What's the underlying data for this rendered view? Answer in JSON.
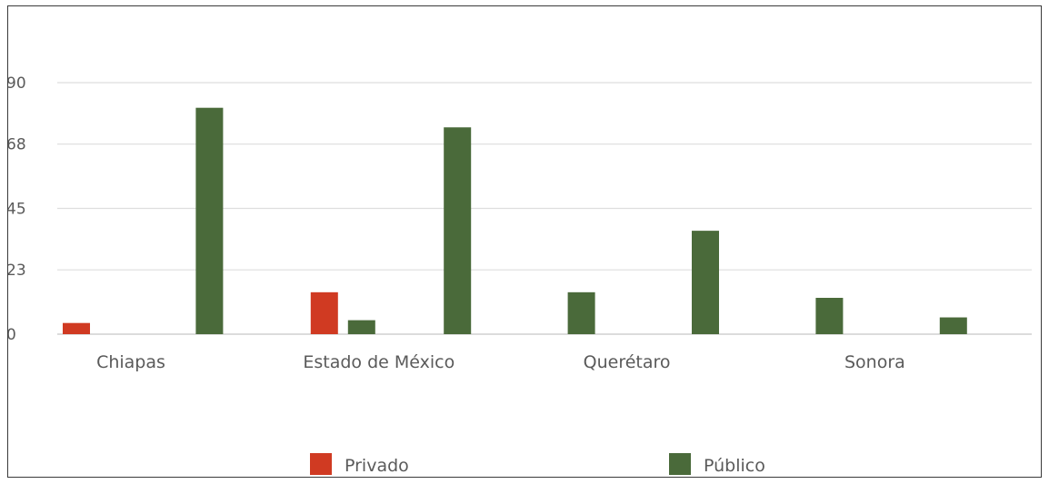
{
  "chart_data": {
    "type": "bar",
    "title": "",
    "xlabel": "",
    "ylabel": "",
    "ylim": [
      0,
      90
    ],
    "yticks": [
      0,
      23,
      45,
      68,
      90
    ],
    "grid": true,
    "legend_position": "bottom",
    "groups": [
      {
        "label": "Chiapas",
        "values": [
          4,
          0
        ]
      },
      {
        "label": "",
        "values": [
          0,
          81
        ]
      },
      {
        "label": "Estado de México",
        "values": [
          15,
          5
        ]
      },
      {
        "label": "",
        "values": [
          0,
          74
        ]
      },
      {
        "label": "Querétaro",
        "values": [
          0,
          15
        ]
      },
      {
        "label": "",
        "values": [
          0,
          37
        ]
      },
      {
        "label": "Sonora",
        "values": [
          0,
          13
        ]
      },
      {
        "label": "",
        "values": [
          0,
          6
        ]
      }
    ],
    "series": [
      {
        "name": "Privado",
        "color": "#d03a22"
      },
      {
        "name": "Público",
        "color": "#4a6a3a"
      }
    ]
  }
}
